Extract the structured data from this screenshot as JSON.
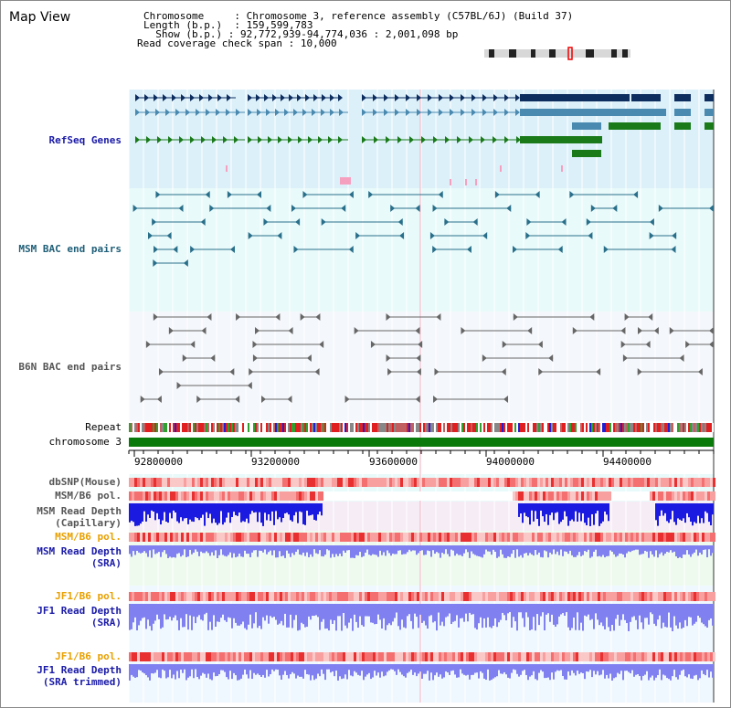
{
  "view_title": "Map View",
  "info": {
    "chromosome_label": "Chromosome",
    "chromosome_value": "Chromosome 3, reference assembly (C57BL/6J) (Build 37)",
    "length_label": "Length (b.p.)",
    "length_value": "159,599,783",
    "show_label": "Show (b.p.)",
    "show_value": "92,772,939-94,774,036 : 2,001,098 bp",
    "coverage_label": "Read coverage check span",
    "coverage_value": "10,000"
  },
  "tracks": {
    "refseq": "RefSeq Genes",
    "msm_bac": "MSM BAC end pairs",
    "b6n_bac": "B6N BAC end pairs",
    "repeat": "Repeat",
    "chromosome": "chromosome 3",
    "dbsnp": "dbSNP(Mouse)",
    "msm_b6_pol_1": "MSM/B6 pol.",
    "msm_read_depth_cap_1": "MSM Read Depth",
    "msm_read_depth_cap_2": "(Capillary)",
    "msm_b6_pol_2": "MSM/B6 pol.",
    "msm_read_depth_sra_1": "MSM Read Depth",
    "msm_read_depth_sra_2": "(SRA)",
    "jf1_b6_pol_1": "JF1/B6 pol.",
    "jf1_read_depth_1": "JF1 Read Depth",
    "jf1_read_depth_2": "(SRA)",
    "jf1_b6_pol_2": "JF1/B6 pol.",
    "jf1_trimmed_1": "JF1 Read Depth",
    "jf1_trimmed_2": "(SRA trimmed)"
  },
  "scale": {
    "ticks": [
      "92800000",
      "93200000",
      "93600000",
      "94000000",
      "94400000"
    ]
  },
  "colors": {
    "refseq_dark": "#0d2d5e",
    "refseq_mid": "#4a8ab0",
    "refseq_green": "#1a7a1a",
    "bac_teal": "#2a6f8a",
    "bac_gray": "#666666",
    "chromosome_bar": "#0a7a0a",
    "depth_blue": "#1a1ae0",
    "depth_light": "#8080f0",
    "pol_red": "#e83030",
    "label_orange": "#e8a000",
    "label_blue": "#1a1aa8"
  }
}
